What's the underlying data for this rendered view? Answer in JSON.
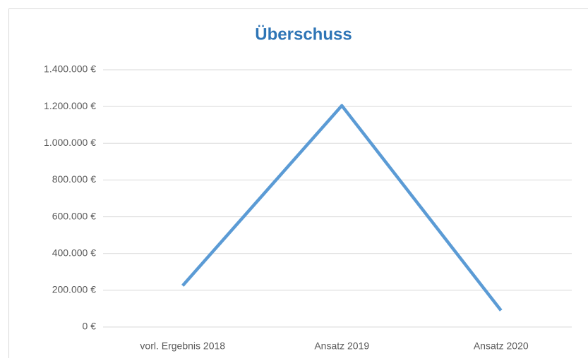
{
  "chart_data": {
    "type": "line",
    "title": "Überschuss",
    "categories": [
      "vorl. Ergebnis 2018",
      "Ansatz 2019",
      "Ansatz 2020"
    ],
    "series": [
      {
        "color": "#5b9bd5",
        "values": [
          225000,
          1205000,
          90000
        ]
      }
    ],
    "ylim": [
      0,
      1400000
    ],
    "yticks": [
      {
        "value": 0,
        "label": "0 €"
      },
      {
        "value": 200000,
        "label": "200.000 €"
      },
      {
        "value": 400000,
        "label": "400.000 €"
      },
      {
        "value": 600000,
        "label": "600.000 €"
      },
      {
        "value": 800000,
        "label": "800.000 €"
      },
      {
        "value": 1000000,
        "label": "1.000.000 €"
      },
      {
        "value": 1200000,
        "label": "1.200.000 €"
      },
      {
        "value": 1400000,
        "label": "1.400.000 €"
      }
    ],
    "grid": true
  }
}
